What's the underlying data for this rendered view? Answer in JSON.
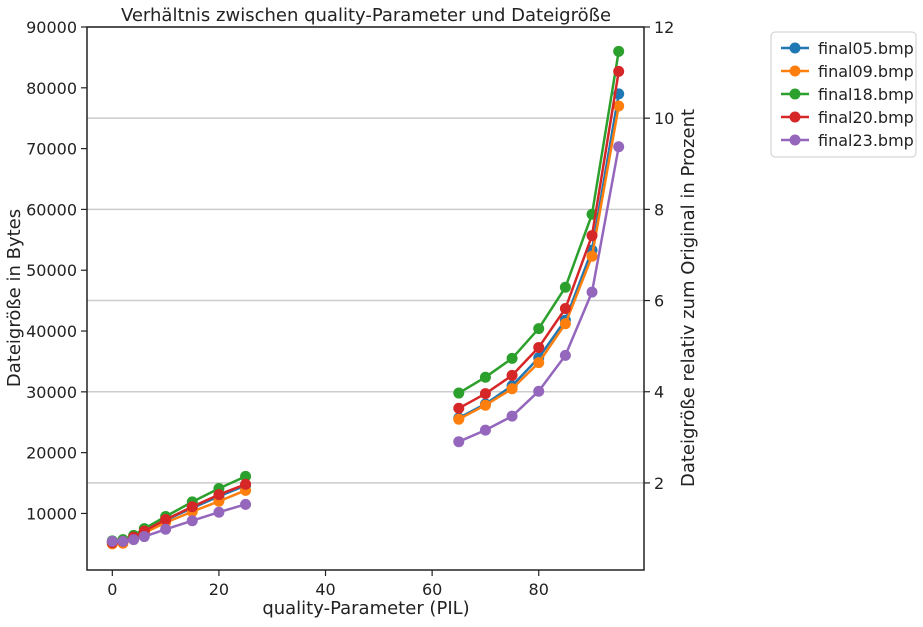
{
  "chart_data": {
    "type": "line",
    "title": "Verhältnis zwischen quality-Parameter und Dateigröße",
    "xlabel": "quality-Parameter (PIL)",
    "ylabel": "Dateigröße in Bytes",
    "y2label": "Dateigröße relativ zum Original in Prozent",
    "xlim": [
      -4.75,
      99.75
    ],
    "ylim": [
      700,
      90000
    ],
    "y2lim": [
      0.09,
      12
    ],
    "x_ticks": [
      0,
      20,
      40,
      60,
      80
    ],
    "y_ticks": [
      10000,
      20000,
      30000,
      40000,
      50000,
      60000,
      70000,
      80000,
      90000
    ],
    "y2_ticks": [
      2,
      4,
      6,
      8,
      10,
      12
    ],
    "grid": "horizontal lines on secondary axis",
    "legend_position": "outside top-right",
    "series": [
      {
        "name": "final05.bmp",
        "color": "#1f77b4",
        "segments": [
          {
            "x": [
              0,
              2,
              4,
              6,
              10,
              15,
              20,
              25
            ],
            "y": [
              5300,
              5500,
              6100,
              7000,
              8900,
              10900,
              12800,
              14600
            ]
          },
          {
            "x": [
              65,
              70,
              75,
              80,
              85,
              90,
              95
            ],
            "y": [
              25700,
              28000,
              31000,
              35600,
              41800,
              53300,
              79000
            ]
          }
        ]
      },
      {
        "name": "final09.bmp",
        "color": "#ff7f0e",
        "segments": [
          {
            "x": [
              0,
              2,
              4,
              6,
              10,
              15,
              20,
              25
            ],
            "y": [
              5000,
              5100,
              5800,
              6800,
              8500,
              10300,
              12000,
              13800
            ]
          },
          {
            "x": [
              65,
              70,
              75,
              80,
              85,
              90,
              95
            ],
            "y": [
              25500,
              27800,
              30500,
              34800,
              41200,
              52300,
              77000
            ]
          }
        ]
      },
      {
        "name": "final18.bmp",
        "color": "#2ca02c",
        "segments": [
          {
            "x": [
              0,
              2,
              4,
              6,
              10,
              15,
              20,
              25
            ],
            "y": [
              5500,
              5700,
              6400,
              7500,
              9500,
              11900,
              14100,
              16100
            ]
          },
          {
            "x": [
              65,
              70,
              75,
              80,
              85,
              90,
              95
            ],
            "y": [
              29800,
              32400,
              35500,
              40400,
              47200,
              59200,
              86000
            ]
          }
        ]
      },
      {
        "name": "final20.bmp",
        "color": "#d62728",
        "segments": [
          {
            "x": [
              0,
              2,
              4,
              6,
              10,
              15,
              20,
              25
            ],
            "y": [
              5200,
              5400,
              6100,
              7100,
              9000,
              11100,
              13100,
              14800
            ]
          },
          {
            "x": [
              65,
              70,
              75,
              80,
              85,
              90,
              95
            ],
            "y": [
              27300,
              29700,
              32700,
              37300,
              43700,
              55700,
              82700
            ]
          }
        ]
      },
      {
        "name": "final23.bmp",
        "color": "#9467bd",
        "segments": [
          {
            "x": [
              0,
              2,
              4,
              6,
              10,
              15,
              20,
              25
            ],
            "y": [
              5400,
              5400,
              5700,
              6200,
              7400,
              8800,
              10200,
              11500
            ]
          },
          {
            "x": [
              65,
              70,
              75,
              80,
              85,
              90,
              95
            ],
            "y": [
              21800,
              23700,
              26000,
              30100,
              36000,
              46400,
              70300
            ]
          }
        ]
      }
    ]
  }
}
